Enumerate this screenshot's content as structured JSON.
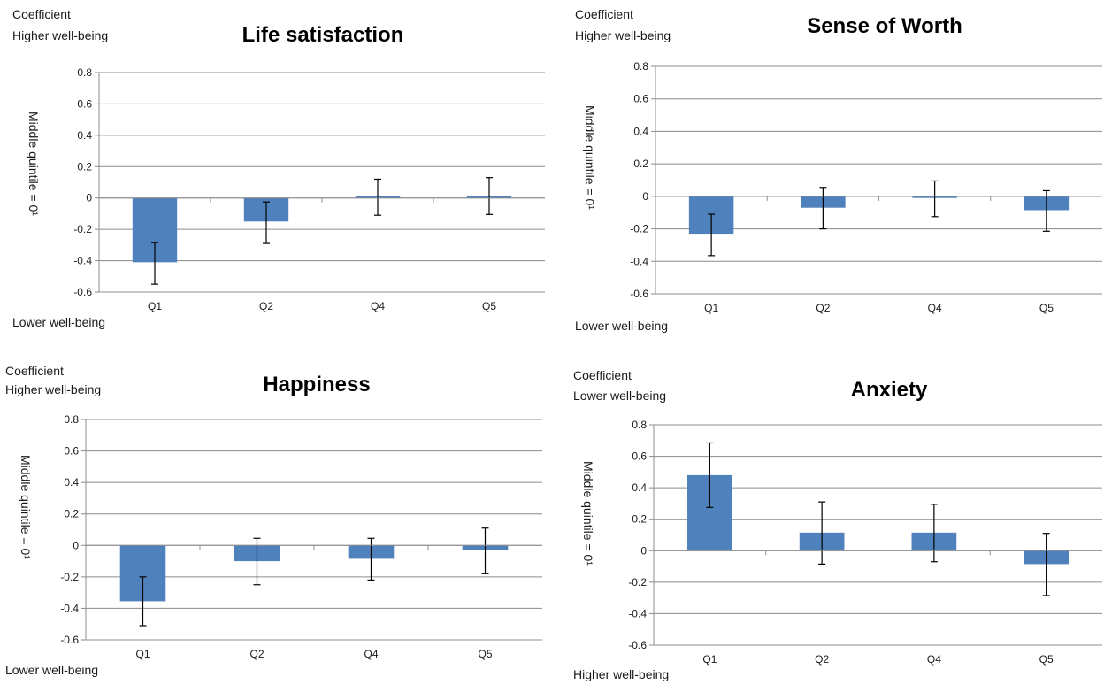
{
  "chart_data": [
    {
      "type": "bar",
      "title": "Life satisfaction",
      "coef_label": "Coefficient",
      "top_label": "Higher well-being",
      "bottom_label": "Lower well-being",
      "ylabel": "Middle quintile = 0¹",
      "categories": [
        "Q1",
        "Q2",
        "Q4",
        "Q5"
      ],
      "values": [
        -0.41,
        -0.15,
        0.01,
        0.015
      ],
      "err_low": [
        -0.55,
        -0.29,
        -0.11,
        -0.105
      ],
      "err_high": [
        -0.285,
        -0.025,
        0.12,
        0.13
      ],
      "yticks": [
        "0.8",
        "0.6",
        "0.4",
        "0.2",
        "0",
        "-0.2",
        "-0.4",
        "-0.6"
      ],
      "ylim": [
        -0.6,
        0.8
      ],
      "color": "#4f81bd"
    },
    {
      "type": "bar",
      "title": "Sense of Worth",
      "coef_label": "Coefficient",
      "top_label": "Higher well-being",
      "bottom_label": "Lower well-being",
      "ylabel": "Middle quintile = 0¹",
      "categories": [
        "Q1",
        "Q2",
        "Q4",
        "Q5"
      ],
      "values": [
        -0.23,
        -0.07,
        -0.01,
        -0.085
      ],
      "err_low": [
        -0.365,
        -0.2,
        -0.125,
        -0.215
      ],
      "err_high": [
        -0.11,
        0.055,
        0.095,
        0.035
      ],
      "yticks": [
        "0.8",
        "0.6",
        "0.4",
        "0.2",
        "0",
        "-0.2",
        "-0.4",
        "-0.6"
      ],
      "ylim": [
        -0.6,
        0.8
      ],
      "color": "#4f81bd"
    },
    {
      "type": "bar",
      "title": "Happiness",
      "coef_label": "Coefficient",
      "top_label": "Higher well-being",
      "bottom_label": "Lower well-being",
      "ylabel": "Middle quintile = 0¹",
      "categories": [
        "Q1",
        "Q2",
        "Q4",
        "Q5"
      ],
      "values": [
        -0.355,
        -0.1,
        -0.085,
        -0.03
      ],
      "err_low": [
        -0.51,
        -0.25,
        -0.22,
        -0.18
      ],
      "err_high": [
        -0.2,
        0.045,
        0.045,
        0.11
      ],
      "yticks": [
        "0.8",
        "0.6",
        "0.4",
        "0.2",
        "0",
        "-0.2",
        "-0.4",
        "-0.6"
      ],
      "ylim": [
        -0.6,
        0.8
      ],
      "color": "#4f81bd"
    },
    {
      "type": "bar",
      "title": "Anxiety",
      "coef_label": "Coefficient",
      "top_label": "Lower well-being",
      "bottom_label": "Higher well-being",
      "ylabel": "Middle quintile = 0¹",
      "categories": [
        "Q1",
        "Q2",
        "Q4",
        "Q5"
      ],
      "values": [
        0.48,
        0.115,
        0.115,
        -0.085
      ],
      "err_low": [
        0.275,
        -0.085,
        -0.07,
        -0.285
      ],
      "err_high": [
        0.685,
        0.31,
        0.295,
        0.11
      ],
      "yticks": [
        "0.8",
        "0.6",
        "0.4",
        "0.2",
        "0",
        "-0.2",
        "-0.4",
        "-0.6"
      ],
      "ylim": [
        -0.6,
        0.8
      ],
      "color": "#4f81bd"
    }
  ]
}
